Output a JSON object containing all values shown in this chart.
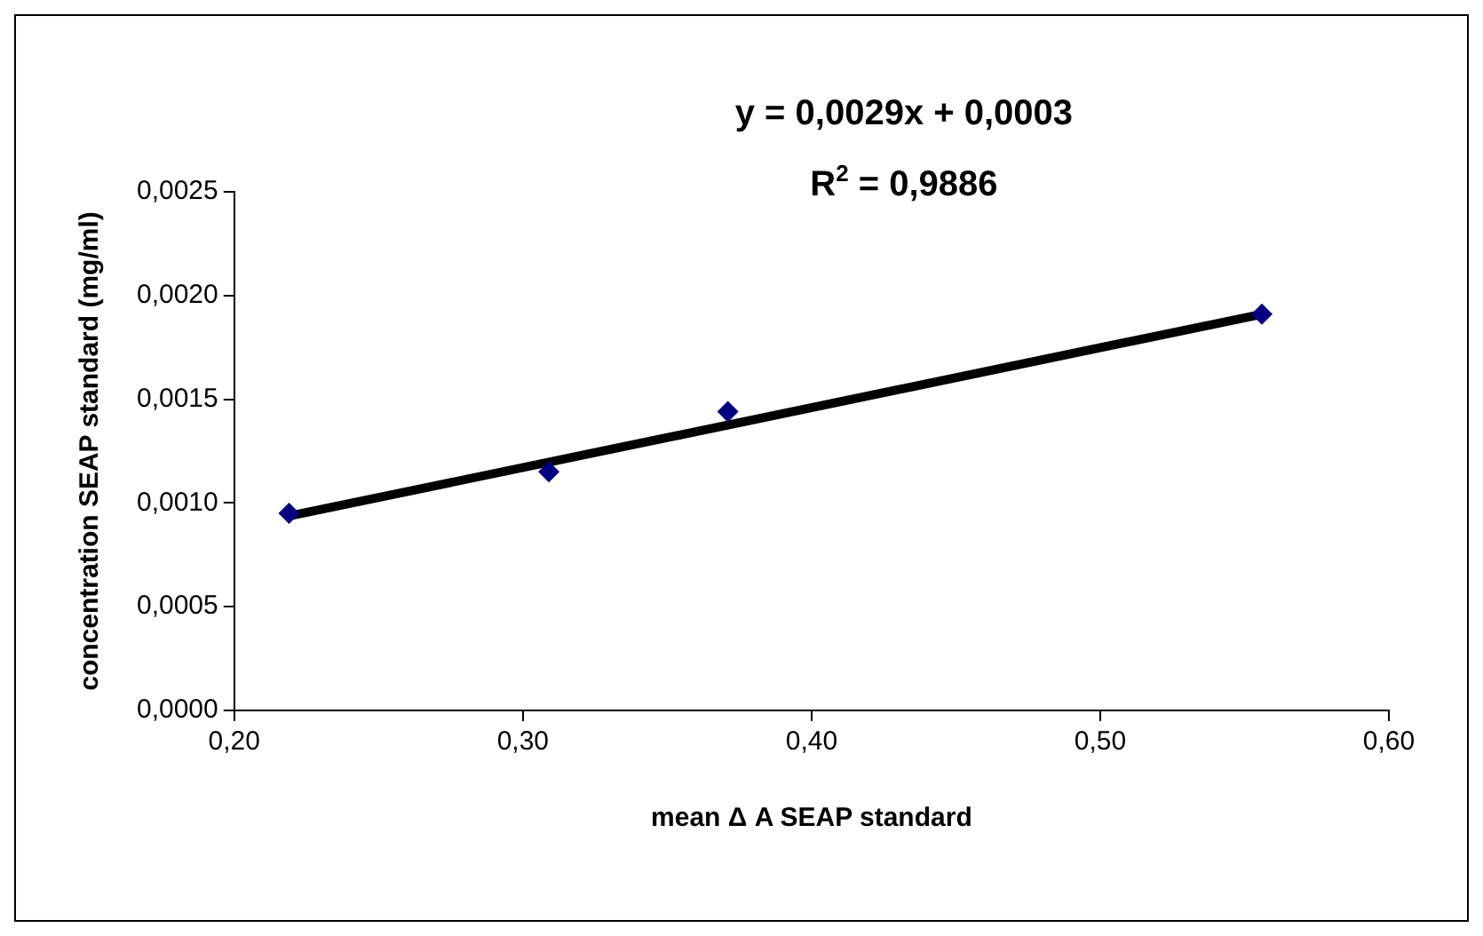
{
  "chart_data": {
    "type": "scatter",
    "xlabel": "mean Δ A SEAP standard",
    "ylabel": "concentration SEAP standard (mg/ml)",
    "annotations": [
      "y = 0,0029x + 0,0003",
      "R$^{2}$ = 0,9886"
    ],
    "series": [
      {
        "type": "scatter",
        "color": "#000080",
        "marker": "diamond",
        "x": [
          0.219,
          0.309,
          0.371,
          0.556
        ],
        "values": [
          0.00095,
          0.00115,
          0.00144,
          0.00191
        ]
      },
      {
        "type": "line",
        "color": "#000000",
        "marker": "none",
        "line_style": "solid",
        "x": [
          0.22,
          0.556
        ],
        "values": [
          0.00094,
          0.00191
        ]
      }
    ],
    "xlim": [
      0.2,
      0.6
    ],
    "xticks": [
      {
        "value": 0.2,
        "label": "0,20"
      },
      {
        "value": 0.3,
        "label": "0,30"
      },
      {
        "value": 0.4,
        "label": "0,40"
      },
      {
        "value": 0.5,
        "label": "0,50"
      },
      {
        "value": 0.6,
        "label": "0,60"
      }
    ],
    "ylim": [
      0,
      0.0025
    ],
    "yticks": [
      {
        "value": 0,
        "label": "0,0000"
      },
      {
        "value": 0.0005,
        "label": "0,0005"
      },
      {
        "value": 0.001,
        "label": "0,0010"
      },
      {
        "value": 0.0015,
        "label": "0,0015"
      },
      {
        "value": 0.002,
        "label": "0,0020"
      },
      {
        "value": 0.0025,
        "label": "0,0025"
      }
    ],
    "grid": false,
    "legend": false
  }
}
